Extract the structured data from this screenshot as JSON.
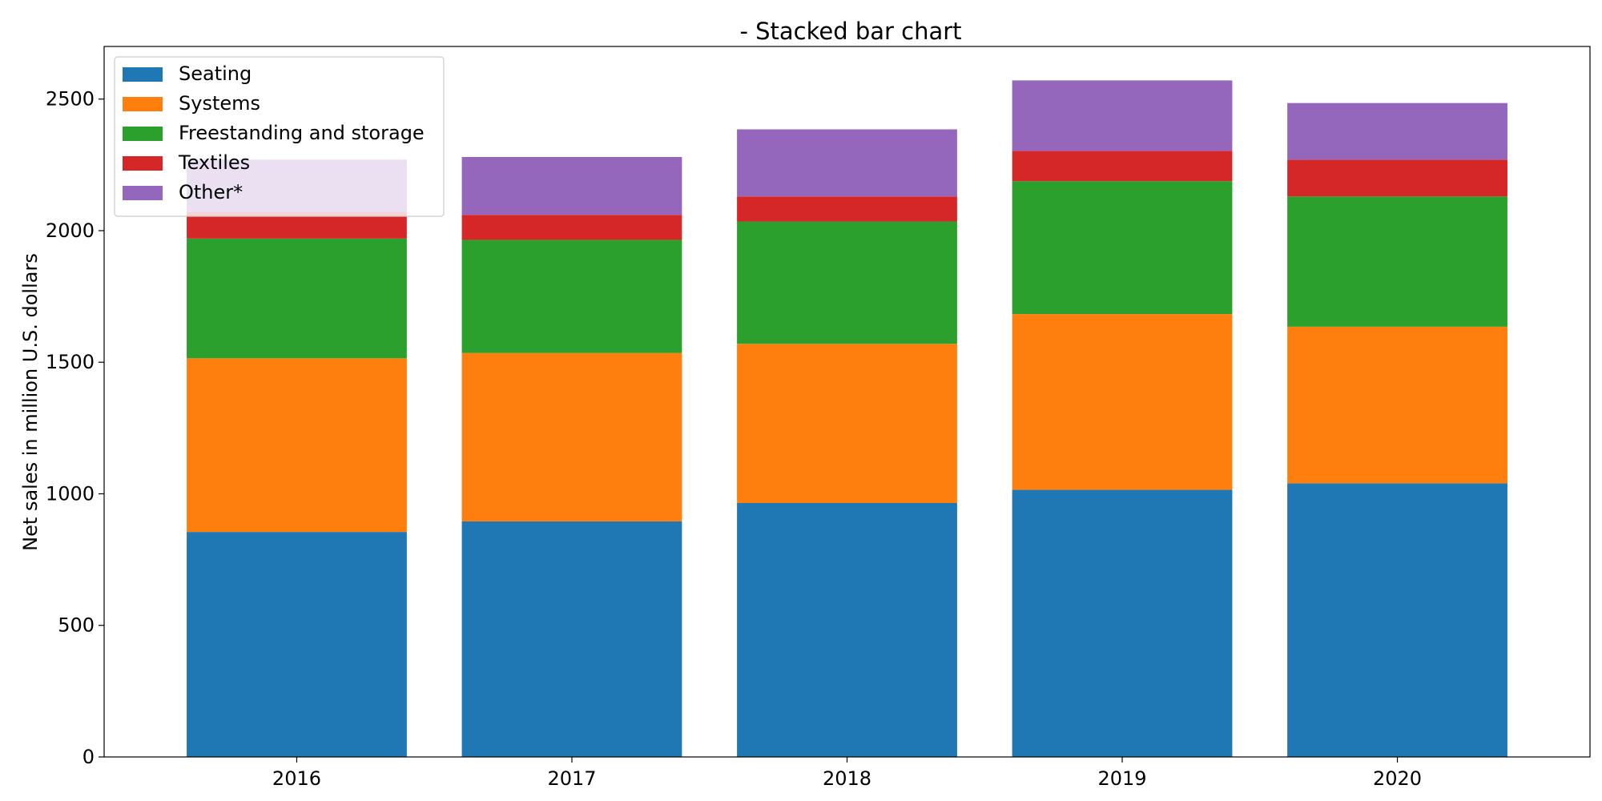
{
  "chart_data": {
    "type": "bar",
    "stacked": true,
    "title": "- Stacked bar chart",
    "xlabel": "",
    "ylabel": "Net sales in million U.S. dollars",
    "categories": [
      "2016",
      "2017",
      "2018",
      "2019",
      "2020"
    ],
    "ylim": [
      0,
      2700
    ],
    "yticks": [
      0,
      500,
      1000,
      1500,
      2000,
      2500
    ],
    "grid": false,
    "legend_position": "top-left",
    "series": [
      {
        "name": "Seating",
        "color": "#1f77b4",
        "values": [
          855,
          895,
          965,
          1015,
          1040
        ]
      },
      {
        "name": "Systems",
        "color": "#ff7f0e",
        "values": [
          660,
          640,
          605,
          668,
          595
        ]
      },
      {
        "name": "Freestanding and storage",
        "color": "#2ca02c",
        "values": [
          455,
          430,
          465,
          505,
          495
        ]
      },
      {
        "name": "Textiles",
        "color": "#d62728",
        "values": [
          100,
          95,
          95,
          115,
          140
        ]
      },
      {
        "name": "Other*",
        "color": "#9467bd",
        "values": [
          200,
          220,
          255,
          268,
          215
        ]
      }
    ]
  }
}
